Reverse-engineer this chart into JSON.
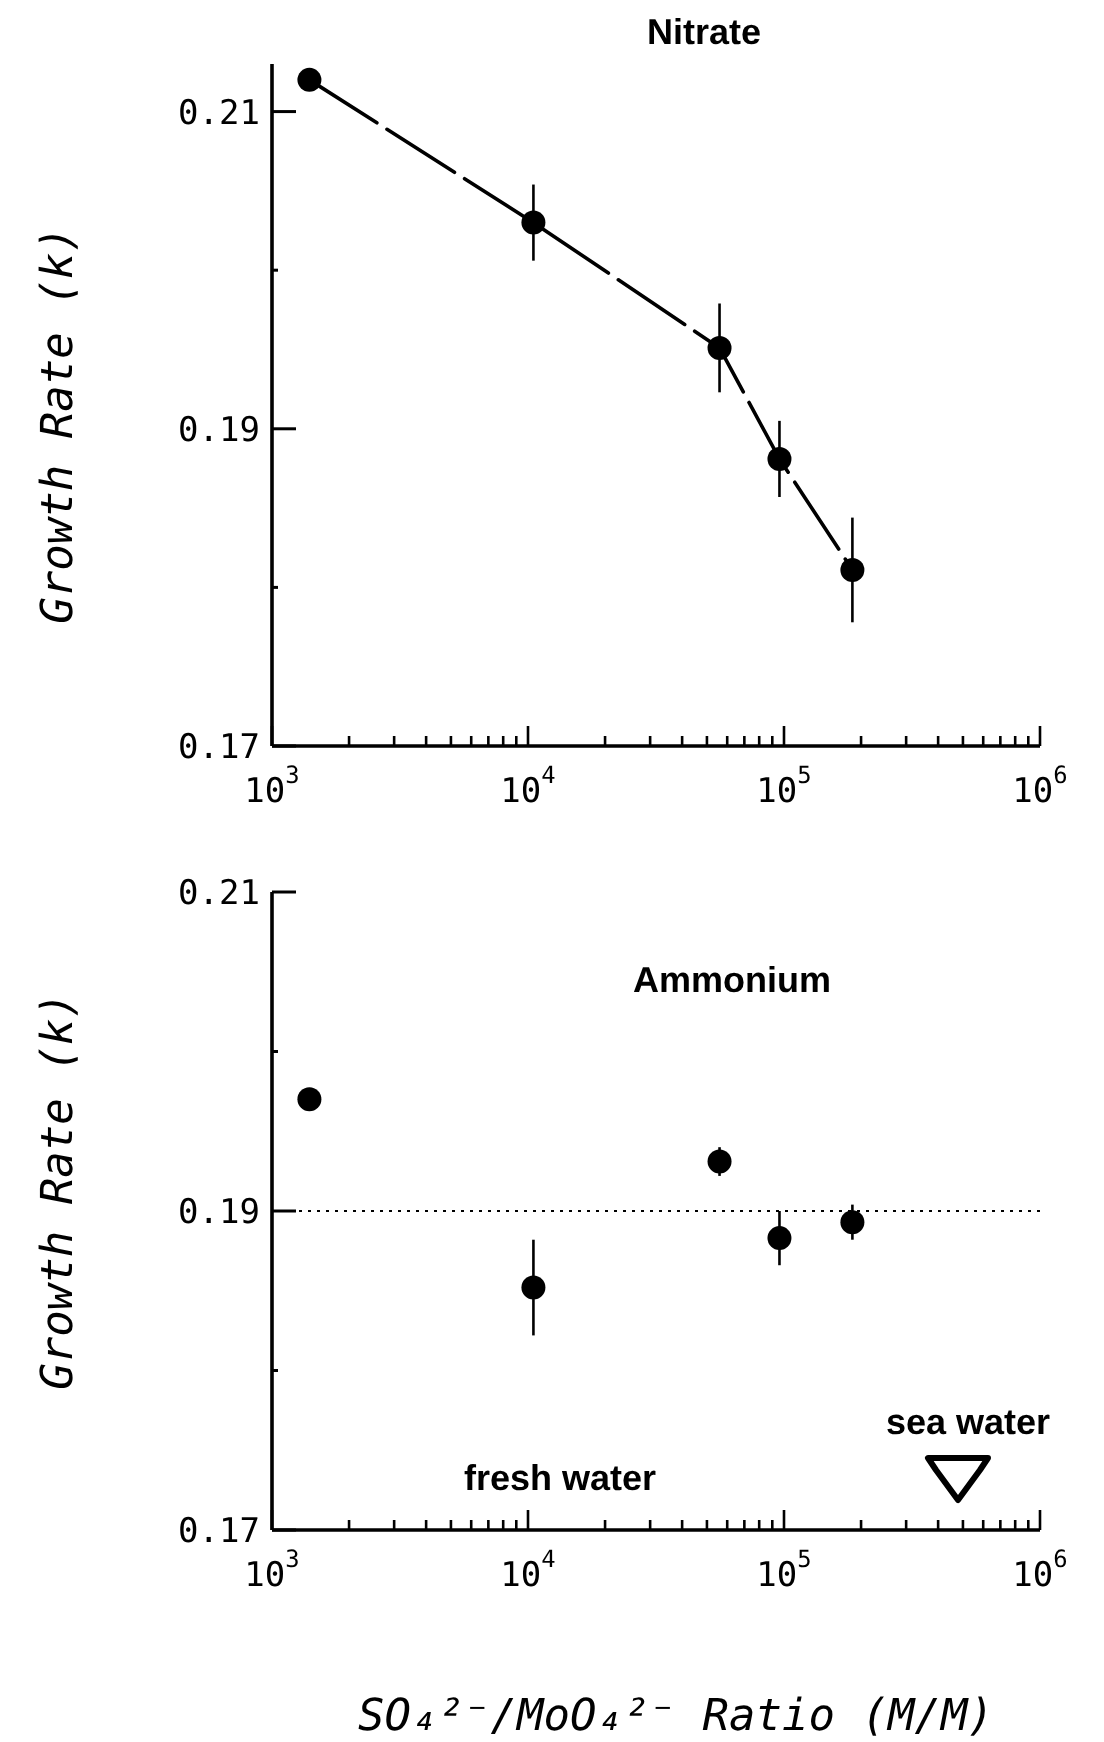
{
  "chart_data": [
    {
      "type": "line",
      "title": "Nitrate",
      "ylabel": "Growth Rate  (k)",
      "log": "x",
      "marker": "circle",
      "line_style": "dashed",
      "x": [
        1400,
        10500,
        56000,
        96000,
        185000
      ],
      "series": [
        {
          "color": "#000000",
          "values": [
            0.212,
            0.203,
            0.1951,
            0.1881,
            0.1811
          ],
          "errors": [
            null,
            0.0024,
            0.0028,
            0.0024,
            0.0033
          ]
        }
      ],
      "xlim": [
        1000,
        1000000
      ],
      "ylim": [
        0.17,
        0.213
      ],
      "xticks": [
        {
          "value": 1000,
          "label": "10$^{3}$"
        },
        {
          "value": 2000,
          "label": null
        },
        {
          "value": 3000,
          "label": null
        },
        {
          "value": 4000,
          "label": null
        },
        {
          "value": 5000,
          "label": null
        },
        {
          "value": 6000,
          "label": null
        },
        {
          "value": 7000,
          "label": null
        },
        {
          "value": 8000,
          "label": null
        },
        {
          "value": 9000,
          "label": null
        },
        {
          "value": 10000,
          "label": "10$^{4}$"
        },
        {
          "value": 20000,
          "label": null
        },
        {
          "value": 30000,
          "label": null
        },
        {
          "value": 40000,
          "label": null
        },
        {
          "value": 50000,
          "label": null
        },
        {
          "value": 60000,
          "label": null
        },
        {
          "value": 70000,
          "label": null
        },
        {
          "value": 80000,
          "label": null
        },
        {
          "value": 90000,
          "label": null
        },
        {
          "value": 100000,
          "label": "10$^{5}$"
        },
        {
          "value": 200000,
          "label": null
        },
        {
          "value": 300000,
          "label": null
        },
        {
          "value": 400000,
          "label": null
        },
        {
          "value": 500000,
          "label": null
        },
        {
          "value": 600000,
          "label": null
        },
        {
          "value": 700000,
          "label": null
        },
        {
          "value": 800000,
          "label": null
        },
        {
          "value": 900000,
          "label": null
        },
        {
          "value": 1000000,
          "label": "10$^{6}$"
        }
      ],
      "yticks": [
        {
          "value": 0.17,
          "label": "0.17"
        },
        {
          "value": 0.18,
          "label": null
        },
        {
          "value": 0.19,
          "label": "0.19"
        },
        {
          "value": 0.2,
          "label": null
        },
        {
          "value": 0.21,
          "label": "0.21"
        }
      ],
      "grid": false
    },
    {
      "type": "scatter",
      "title": "Ammonium",
      "ylabel": "Growth Rate  (k)",
      "xlabel": "SO₄²⁻/MoO₄²⁻ Ratio  (M/M)",
      "log": "x",
      "marker": "circle",
      "x": [
        1400,
        10500,
        56000,
        96000,
        185000
      ],
      "series": [
        {
          "color": "#000000",
          "values": [
            0.197,
            0.1852,
            0.1931,
            0.1883,
            0.1893
          ],
          "errors": [
            null,
            0.003,
            0.0009,
            0.0017,
            0.0011
          ]
        }
      ],
      "xlim": [
        1000,
        1000000
      ],
      "ylim": [
        0.17,
        0.21
      ],
      "xticks": [
        {
          "value": 1000,
          "label": "10$^{3}$"
        },
        {
          "value": 2000,
          "label": null
        },
        {
          "value": 3000,
          "label": null
        },
        {
          "value": 4000,
          "label": null
        },
        {
          "value": 5000,
          "label": null
        },
        {
          "value": 6000,
          "label": null
        },
        {
          "value": 7000,
          "label": null
        },
        {
          "value": 8000,
          "label": null
        },
        {
          "value": 9000,
          "label": null
        },
        {
          "value": 10000,
          "label": "10$^{4}$"
        },
        {
          "value": 20000,
          "label": null
        },
        {
          "value": 30000,
          "label": null
        },
        {
          "value": 40000,
          "label": null
        },
        {
          "value": 50000,
          "label": null
        },
        {
          "value": 60000,
          "label": null
        },
        {
          "value": 70000,
          "label": null
        },
        {
          "value": 80000,
          "label": null
        },
        {
          "value": 90000,
          "label": null
        },
        {
          "value": 100000,
          "label": "10$^{5}$"
        },
        {
          "value": 200000,
          "label": null
        },
        {
          "value": 300000,
          "label": null
        },
        {
          "value": 400000,
          "label": null
        },
        {
          "value": 500000,
          "label": null
        },
        {
          "value": 600000,
          "label": null
        },
        {
          "value": 700000,
          "label": null
        },
        {
          "value": 800000,
          "label": null
        },
        {
          "value": 900000,
          "label": null
        },
        {
          "value": 1000000,
          "label": "10$^{6}$"
        }
      ],
      "yticks": [
        {
          "value": 0.17,
          "label": "0.17"
        },
        {
          "value": 0.18,
          "label": null
        },
        {
          "value": 0.19,
          "label": "0.19"
        },
        {
          "value": 0.2,
          "label": null
        },
        {
          "value": 0.21,
          "label": "0.21"
        }
      ],
      "ref_lines": [
        {
          "axis": "y",
          "value": 0.19,
          "line_style": "dotted"
        }
      ],
      "annotations": [
        "fresh water",
        "sea water"
      ]
    }
  ]
}
